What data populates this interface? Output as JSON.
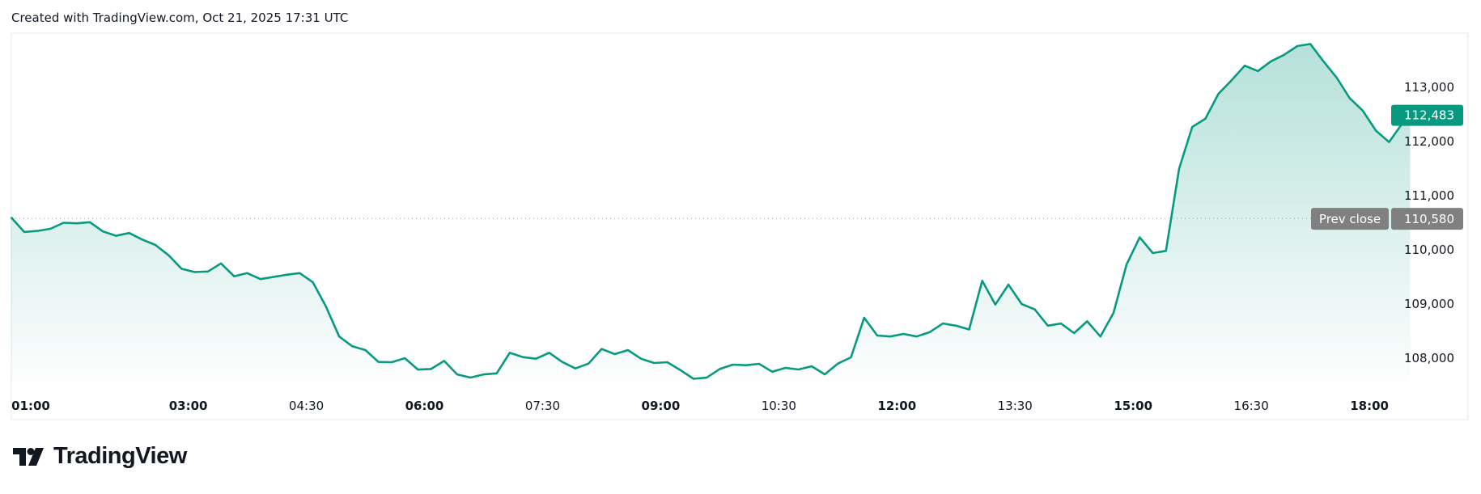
{
  "header": {
    "text": "Created with TradingView.com, Oct 21, 2025 17:31 UTC"
  },
  "logo": {
    "text": "TradingView"
  },
  "chart_data": {
    "type": "area",
    "line_color": "#089981",
    "fill_color": "#089981",
    "y_ticks": [
      "113,000",
      "112,000",
      "111,000",
      "110,000",
      "109,000",
      "108,000"
    ],
    "y_tick_values": [
      113000,
      112000,
      111000,
      110000,
      109000,
      108000
    ],
    "ylim": [
      107400,
      113900
    ],
    "x_ticks": [
      {
        "label": "01:00",
        "bold": true
      },
      {
        "label": "03:00",
        "bold": true
      },
      {
        "label": "04:30",
        "bold": false
      },
      {
        "label": "06:00",
        "bold": true
      },
      {
        "label": "07:30",
        "bold": false
      },
      {
        "label": "09:00",
        "bold": true
      },
      {
        "label": "10:30",
        "bold": false
      },
      {
        "label": "12:00",
        "bold": true
      },
      {
        "label": "13:30",
        "bold": false
      },
      {
        "label": "15:00",
        "bold": true
      },
      {
        "label": "16:30",
        "bold": false
      },
      {
        "label": "18:00",
        "bold": true
      }
    ],
    "last_price": {
      "value": 112483,
      "label": "112,483",
      "color": "#089981"
    },
    "prev_close": {
      "value": 110580,
      "label": "110,580",
      "title": "Prev close",
      "color": "#808080"
    },
    "points": [
      [
        "00:45",
        110600
      ],
      [
        "00:55",
        110330
      ],
      [
        "01:05",
        110350
      ],
      [
        "01:15",
        110388
      ],
      [
        "01:25",
        110500
      ],
      [
        "01:35",
        110490
      ],
      [
        "01:45",
        110510
      ],
      [
        "01:55",
        110340
      ],
      [
        "02:05",
        110260
      ],
      [
        "02:15",
        110310
      ],
      [
        "02:25",
        110190
      ],
      [
        "02:35",
        110090
      ],
      [
        "02:45",
        109900
      ],
      [
        "02:55",
        109650
      ],
      [
        "03:05",
        109590
      ],
      [
        "03:15",
        109600
      ],
      [
        "03:25",
        109750
      ],
      [
        "03:35",
        109510
      ],
      [
        "03:45",
        109570
      ],
      [
        "03:55",
        109460
      ],
      [
        "04:05",
        109500
      ],
      [
        "04:15",
        109540
      ],
      [
        "04:25",
        109570
      ],
      [
        "04:35",
        109400
      ],
      [
        "04:45",
        108950
      ],
      [
        "04:55",
        108400
      ],
      [
        "05:05",
        108220
      ],
      [
        "05:15",
        108150
      ],
      [
        "05:25",
        107930
      ],
      [
        "05:35",
        107925
      ],
      [
        "05:45",
        108000
      ],
      [
        "05:55",
        107790
      ],
      [
        "06:05",
        107800
      ],
      [
        "06:15",
        107950
      ],
      [
        "06:25",
        107700
      ],
      [
        "06:35",
        107642
      ],
      [
        "06:45",
        107700
      ],
      [
        "06:55",
        107720
      ],
      [
        "07:05",
        108100
      ],
      [
        "07:15",
        108020
      ],
      [
        "07:25",
        107990
      ],
      [
        "07:35",
        108100
      ],
      [
        "07:45",
        107930
      ],
      [
        "07:55",
        107810
      ],
      [
        "08:05",
        107900
      ],
      [
        "08:15",
        108170
      ],
      [
        "08:25",
        108075
      ],
      [
        "08:35",
        108150
      ],
      [
        "08:45",
        107990
      ],
      [
        "08:55",
        107910
      ],
      [
        "09:05",
        107925
      ],
      [
        "09:15",
        107780
      ],
      [
        "09:25",
        107620
      ],
      [
        "09:35",
        107640
      ],
      [
        "09:45",
        107800
      ],
      [
        "09:55",
        107880
      ],
      [
        "10:05",
        107870
      ],
      [
        "10:15",
        107896
      ],
      [
        "10:25",
        107750
      ],
      [
        "10:35",
        107821
      ],
      [
        "10:45",
        107791
      ],
      [
        "10:55",
        107851
      ],
      [
        "11:05",
        107701
      ],
      [
        "11:15",
        107900
      ],
      [
        "11:25",
        108015
      ],
      [
        "11:35",
        108746
      ],
      [
        "11:45",
        108418
      ],
      [
        "11:55",
        108400
      ],
      [
        "12:05",
        108448
      ],
      [
        "12:15",
        108400
      ],
      [
        "12:25",
        108480
      ],
      [
        "12:35",
        108640
      ],
      [
        "12:45",
        108600
      ],
      [
        "12:55",
        108530
      ],
      [
        "13:05",
        109430
      ],
      [
        "13:15",
        108990
      ],
      [
        "13:25",
        109358
      ],
      [
        "13:35",
        109000
      ],
      [
        "13:45",
        108900
      ],
      [
        "13:55",
        108600
      ],
      [
        "14:05",
        108640
      ],
      [
        "14:15",
        108463
      ],
      [
        "14:25",
        108680
      ],
      [
        "14:35",
        108400
      ],
      [
        "14:45",
        108836
      ],
      [
        "14:55",
        109731
      ],
      [
        "15:05",
        110230
      ],
      [
        "15:15",
        109940
      ],
      [
        "15:25",
        109980
      ],
      [
        "15:35",
        111500
      ],
      [
        "15:45",
        112269
      ],
      [
        "15:55",
        112420
      ],
      [
        "16:05",
        112880
      ],
      [
        "16:15",
        113130
      ],
      [
        "16:25",
        113400
      ],
      [
        "16:35",
        113300
      ],
      [
        "16:45",
        113480
      ],
      [
        "16:55",
        113600
      ],
      [
        "17:05",
        113761
      ],
      [
        "17:15",
        113800
      ],
      [
        "17:25",
        113480
      ],
      [
        "17:35",
        113180
      ],
      [
        "17:45",
        112800
      ],
      [
        "17:55",
        112567
      ],
      [
        "18:05",
        112200
      ],
      [
        "18:15",
        111990
      ],
      [
        "18:25",
        112330
      ],
      [
        "18:31",
        112483
      ]
    ]
  }
}
